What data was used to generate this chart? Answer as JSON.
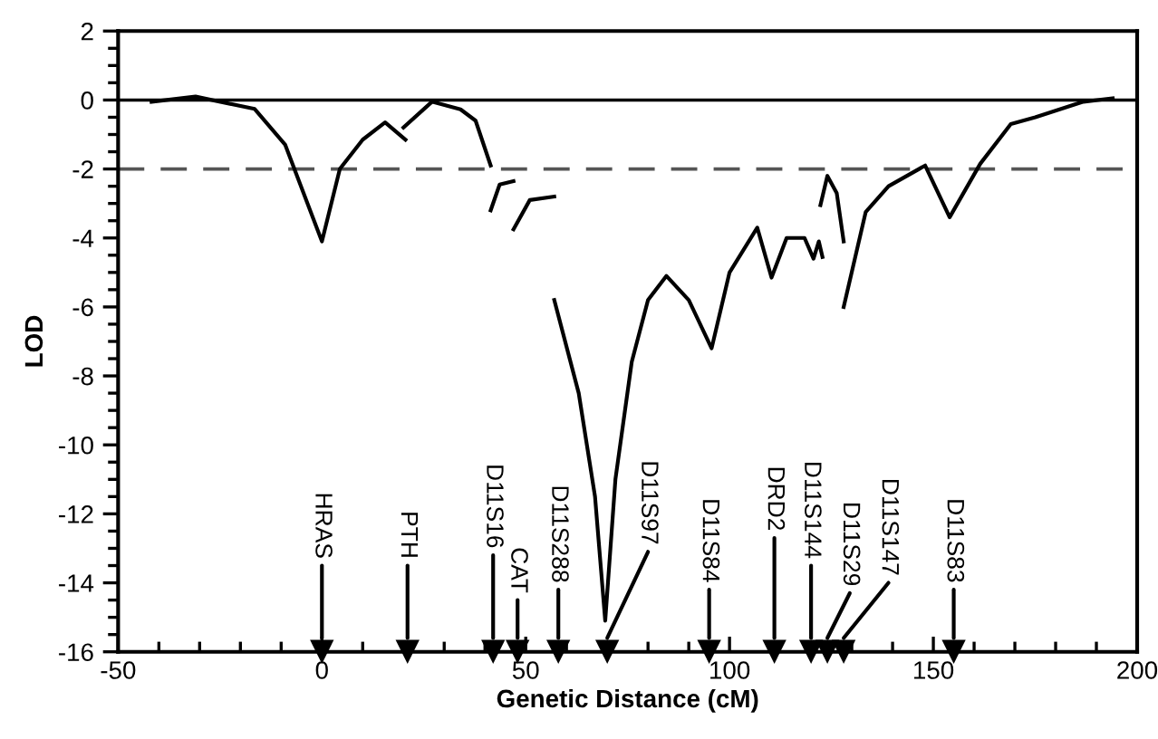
{
  "chart_data": {
    "type": "line",
    "xlabel": "Genetic Distance (cM)",
    "ylabel": "LOD",
    "xlim": [
      -50,
      200
    ],
    "ylim": [
      -16,
      2
    ],
    "xticks": [
      -50,
      0,
      50,
      100,
      150,
      200
    ],
    "yticks": [
      -16,
      -14,
      -12,
      -10,
      -8,
      -6,
      -4,
      -2,
      0,
      2
    ],
    "grid": false,
    "legend": false,
    "marker": "none",
    "line_style": "solid",
    "series": [
      {
        "color": "#000000",
        "x": [
          -41.8,
          -31,
          -16.5,
          -9,
          0,
          4.4,
          10,
          15.5,
          20.5
        ],
        "values": [
          -0.05,
          0.1,
          -0.26,
          -1.3,
          -4.1,
          -2.0,
          -1.15,
          -0.65,
          -1.15
        ]
      },
      {
        "color": "#000000",
        "x": [
          20,
          27,
          34,
          37.7,
          41.4
        ],
        "values": [
          -0.8,
          -0.05,
          -0.27,
          -0.6,
          -1.9
        ]
      },
      {
        "color": "#000000",
        "x": [
          41.4,
          43.6,
          47
        ],
        "values": [
          -3.2,
          -2.45,
          -2.35
        ]
      },
      {
        "color": "#000000",
        "x": [
          47,
          51,
          57
        ],
        "values": [
          -3.75,
          -2.9,
          -2.8
        ]
      },
      {
        "color": "#000000",
        "x": [
          57,
          63,
          67,
          69.5,
          72,
          76,
          80,
          84.5,
          90,
          95.6,
          100,
          106.8,
          110.3,
          114,
          118.4,
          120.6,
          121.9,
          122.8
        ],
        "values": [
          -5.8,
          -8.5,
          -11.5,
          -15.1,
          -11,
          -7.6,
          -5.8,
          -5.1,
          -5.8,
          -7.2,
          -5.0,
          -3.7,
          -5.15,
          -4.0,
          -4.0,
          -4.6,
          -4.1,
          -4.55
        ]
      },
      {
        "color": "#000000",
        "x": [
          122.3,
          124,
          126.3,
          128
        ],
        "values": [
          -3.05,
          -2.2,
          -2.7,
          -4.1
        ]
      },
      {
        "type": "scatter",
        "marker": "triangle",
        "color": "#000000",
        "x": [
          0,
          21,
          42,
          48,
          58,
          70,
          95,
          111,
          120,
          124,
          128,
          155
        ],
        "values": [
          -16,
          -16,
          -16,
          -16,
          -16,
          -16,
          -16,
          -16,
          -16,
          -16,
          -16,
          -16
        ]
      },
      {
        "color": "#000000",
        "x": [
          128,
          133.4,
          139,
          148,
          154,
          161.5,
          169,
          175,
          186.8,
          194
        ],
        "values": [
          -6.0,
          -3.25,
          -2.5,
          -1.9,
          -3.4,
          -1.85,
          -0.7,
          -0.5,
          -0.05,
          0.05
        ]
      }
    ],
    "ref_lines": [
      {
        "axis": "y",
        "value": 0,
        "color": "#000000",
        "line_style": "solid"
      },
      {
        "axis": "y",
        "value": -2,
        "color": "#555555",
        "line_style": "dashed"
      }
    ],
    "annotations": [
      {
        "text": "HRAS",
        "x": 0,
        "y": -16
      },
      {
        "text": "PTH",
        "x": 21,
        "y": -16
      },
      {
        "text": "D11S16",
        "x": 42,
        "y": -16
      },
      {
        "text": "CAT",
        "x": 48,
        "y": -16
      },
      {
        "text": "D11S288",
        "x": 58,
        "y": -16
      },
      {
        "text": "D11S97",
        "x": 70,
        "y": -16
      },
      {
        "text": "D11S84",
        "x": 95,
        "y": -16
      },
      {
        "text": "DRD2",
        "x": 111,
        "y": -16
      },
      {
        "text": "D11S144",
        "x": 120,
        "y": -16
      },
      {
        "text": "D11S29",
        "x": 124,
        "y": -16
      },
      {
        "text": "D11S147",
        "x": 128,
        "y": -16
      },
      {
        "text": "D11S83",
        "x": 155,
        "y": -16
      }
    ]
  }
}
